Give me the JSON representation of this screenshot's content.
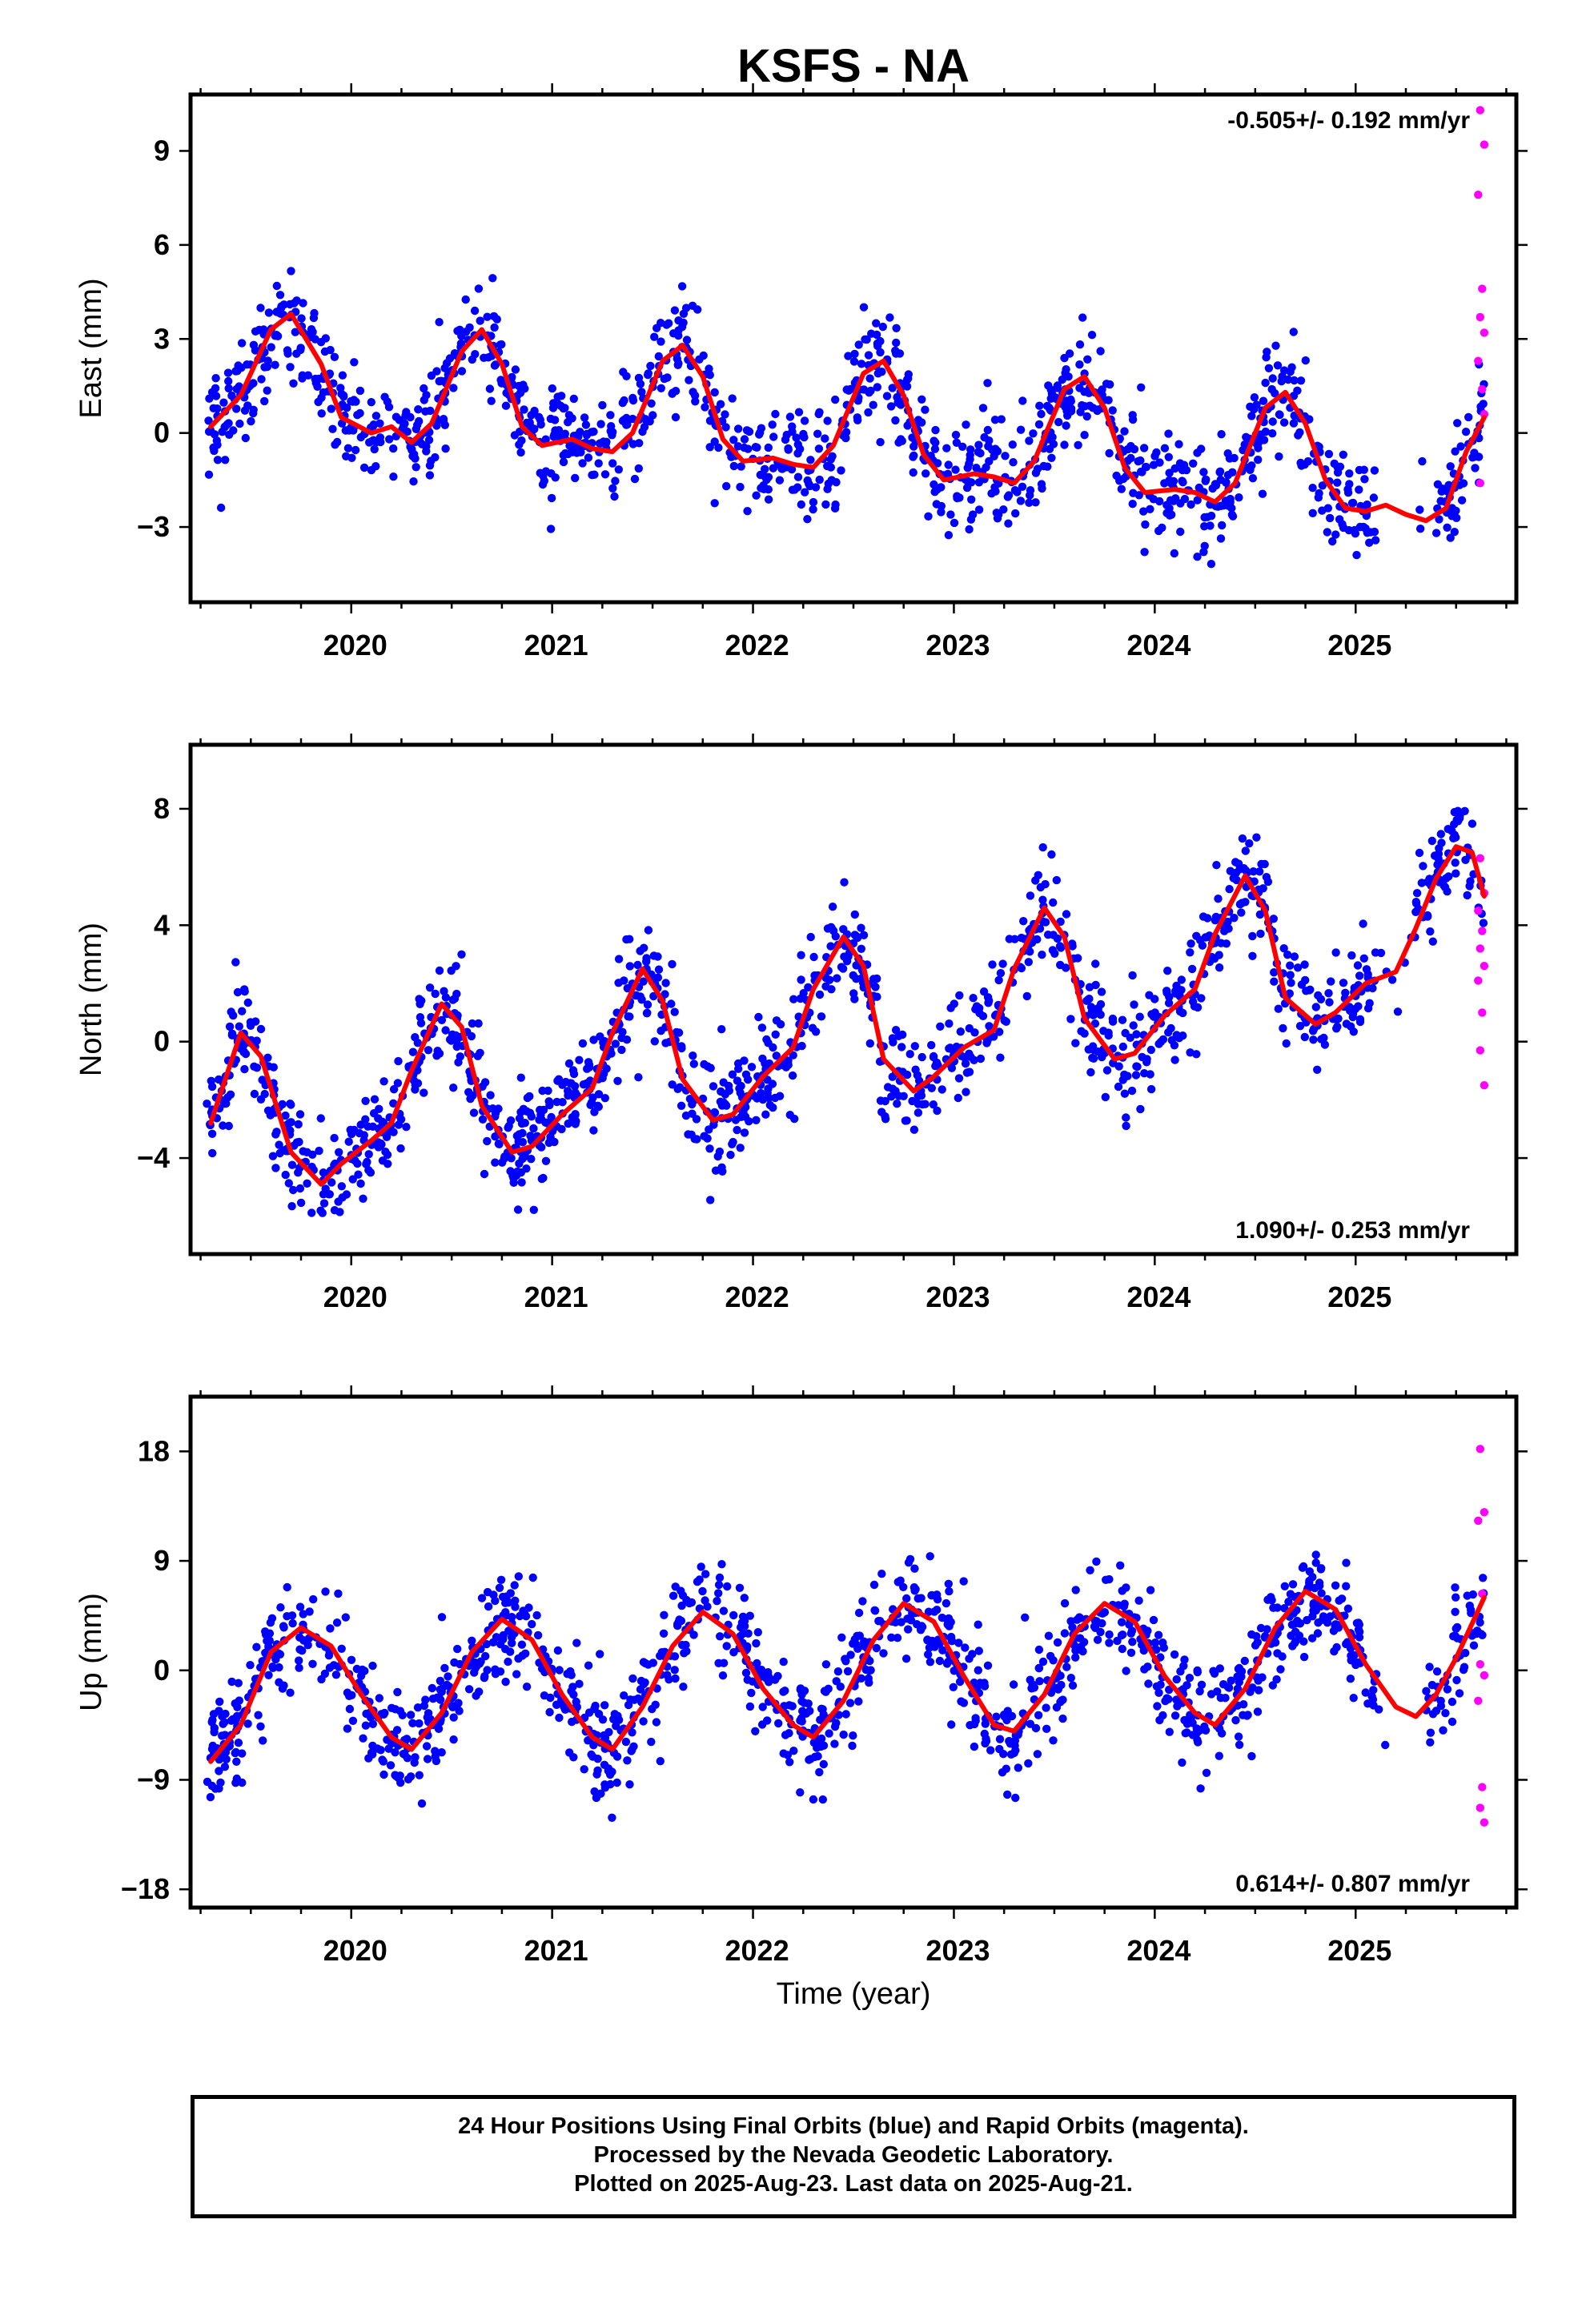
{
  "chart_data": {
    "title": "KSFS - NA",
    "footer": [
      "24 Hour Positions Using Final Orbits (blue) and Rapid Orbits (magenta).",
      "Processed by the Nevada Geodetic Laboratory.",
      "Plotted on 2025-Aug-23. Last data on 2025-Aug-21."
    ],
    "xlabel": "Time (year)",
    "x_range": [
      2019.2,
      2025.8
    ],
    "x_ticks": [
      "2020",
      "2021",
      "2022",
      "2023",
      "2024",
      "2025"
    ],
    "colors": {
      "final": "#0000ff",
      "rapid": "#ff00ff",
      "model": "#ff0000"
    },
    "panels": [
      {
        "type": "scatter",
        "ylabel": "East (mm)",
        "ylim": [
          -5.4,
          10.8
        ],
        "y_ticks": [
          9,
          6,
          3,
          0,
          -3
        ],
        "rate": "-0.505+/- 0.192 mm/yr",
        "rate_position": "top-right",
        "data_start": 2019.28,
        "data_end": 2025.64,
        "gap": [
          2025.1,
          2025.4
        ],
        "model": {
          "x": [
            2019.3,
            2019.45,
            2019.6,
            2019.7,
            2019.85,
            2019.95,
            2020.1,
            2020.2,
            2020.3,
            2020.4,
            2020.55,
            2020.65,
            2020.75,
            2020.85,
            2020.95,
            2021.1,
            2021.2,
            2021.3,
            2021.4,
            2021.55,
            2021.65,
            2021.75,
            2021.85,
            2021.95,
            2022.1,
            2022.2,
            2022.3,
            2022.4,
            2022.55,
            2022.65,
            2022.75,
            2022.85,
            2022.95,
            2023.1,
            2023.2,
            2023.3,
            2023.4,
            2023.55,
            2023.65,
            2023.75,
            2023.85,
            2023.95,
            2024.1,
            2024.2,
            2024.3,
            2024.4,
            2024.55,
            2024.65,
            2024.75,
            2024.85,
            2024.95,
            2025.05,
            2025.15,
            2025.25,
            2025.35,
            2025.45,
            2025.55,
            2025.64
          ],
          "y": [
            0.2,
            1.2,
            3.3,
            3.8,
            2.2,
            0.5,
            0.0,
            0.2,
            -0.3,
            0.3,
            2.6,
            3.3,
            2.2,
            0.2,
            -0.4,
            -0.2,
            -0.5,
            -0.6,
            0.0,
            2.3,
            2.8,
            1.8,
            -0.2,
            -0.9,
            -0.8,
            -1.0,
            -1.1,
            -0.4,
            1.9,
            2.3,
            1.2,
            -0.7,
            -1.5,
            -1.3,
            -1.4,
            -1.6,
            -0.9,
            1.4,
            1.8,
            0.8,
            -1.1,
            -1.9,
            -1.8,
            -1.9,
            -2.2,
            -1.6,
            0.8,
            1.3,
            0.3,
            -1.5,
            -2.4,
            -2.5,
            -2.3,
            -2.6,
            -2.8,
            -2.4,
            -0.6,
            0.5
          ]
        },
        "rapid_points": [
          {
            "x": 2025.62,
            "y": 10.3
          },
          {
            "x": 2025.64,
            "y": 9.2
          },
          {
            "x": 2025.61,
            "y": 7.6
          },
          {
            "x": 2025.63,
            "y": 4.6
          },
          {
            "x": 2025.62,
            "y": 3.7
          },
          {
            "x": 2025.64,
            "y": 3.2
          },
          {
            "x": 2025.61,
            "y": 2.3
          },
          {
            "x": 2025.63,
            "y": 1.4
          },
          {
            "x": 2025.64,
            "y": 0.6
          },
          {
            "x": 2025.62,
            "y": -1.6
          }
        ]
      },
      {
        "type": "scatter",
        "ylabel": "North (mm)",
        "ylim": [
          -7.3,
          10.2
        ],
        "y_ticks": [
          8,
          4,
          0,
          -4
        ],
        "rate": "1.090+/- 0.253 mm/yr",
        "rate_position": "bottom-right",
        "data_start": 2019.28,
        "data_end": 2025.64,
        "gap": [
          2025.1,
          2025.3
        ],
        "model": {
          "x": [
            2019.3,
            2019.45,
            2019.55,
            2019.7,
            2019.85,
            2019.95,
            2020.1,
            2020.2,
            2020.3,
            2020.45,
            2020.55,
            2020.65,
            2020.8,
            2020.9,
            2021.05,
            2021.2,
            2021.3,
            2021.45,
            2021.55,
            2021.65,
            2021.8,
            2021.9,
            2022.05,
            2022.2,
            2022.3,
            2022.45,
            2022.55,
            2022.65,
            2022.8,
            2022.9,
            2023.05,
            2023.2,
            2023.3,
            2023.45,
            2023.55,
            2023.65,
            2023.8,
            2023.9,
            2024.05,
            2024.2,
            2024.3,
            2024.45,
            2024.55,
            2024.65,
            2024.8,
            2024.9,
            2025.05,
            2025.2,
            2025.3,
            2025.4,
            2025.5,
            2025.58,
            2025.64
          ],
          "y": [
            -2.8,
            0.3,
            -0.5,
            -3.8,
            -4.9,
            -4.2,
            -3.4,
            -2.8,
            -1.0,
            1.3,
            0.5,
            -2.2,
            -3.8,
            -3.6,
            -2.5,
            -1.6,
            0.3,
            2.5,
            1.4,
            -1.3,
            -2.7,
            -2.5,
            -1.2,
            -0.2,
            1.8,
            3.6,
            2.6,
            -0.6,
            -1.7,
            -1.2,
            -0.2,
            0.4,
            2.5,
            4.6,
            3.6,
            0.8,
            -0.6,
            -0.4,
            0.9,
            1.8,
            3.7,
            5.7,
            4.5,
            1.5,
            0.6,
            1.0,
            2.0,
            2.4,
            3.9,
            5.6,
            6.7,
            6.5,
            5.0
          ]
        },
        "rapid_points": [
          {
            "x": 2025.62,
            "y": 6.3
          },
          {
            "x": 2025.64,
            "y": 5.1
          },
          {
            "x": 2025.61,
            "y": 4.5
          },
          {
            "x": 2025.63,
            "y": 3.8
          },
          {
            "x": 2025.62,
            "y": 3.2
          },
          {
            "x": 2025.64,
            "y": 2.6
          },
          {
            "x": 2025.61,
            "y": 2.1
          },
          {
            "x": 2025.63,
            "y": 1.0
          },
          {
            "x": 2025.62,
            "y": -0.3
          },
          {
            "x": 2025.64,
            "y": -1.5
          }
        ]
      },
      {
        "type": "scatter",
        "ylabel": "Up (mm)",
        "ylim": [
          -19.5,
          22.5
        ],
        "y_ticks": [
          18,
          9,
          0,
          -9,
          -18
        ],
        "rate": "0.614+/- 0.807 mm/yr",
        "rate_position": "bottom-right",
        "data_start": 2019.28,
        "data_end": 2025.64,
        "gap": [
          2025.1,
          2025.35
        ],
        "model": {
          "x": [
            2019.3,
            2019.45,
            2019.6,
            2019.75,
            2019.9,
            2020.05,
            2020.2,
            2020.3,
            2020.45,
            2020.6,
            2020.75,
            2020.9,
            2021.05,
            2021.2,
            2021.3,
            2021.45,
            2021.6,
            2021.75,
            2021.9,
            2022.05,
            2022.2,
            2022.3,
            2022.45,
            2022.6,
            2022.75,
            2022.9,
            2023.05,
            2023.2,
            2023.3,
            2023.45,
            2023.6,
            2023.75,
            2023.9,
            2024.05,
            2024.2,
            2024.3,
            2024.45,
            2024.6,
            2024.75,
            2024.9,
            2025.05,
            2025.2,
            2025.3,
            2025.4,
            2025.5,
            2025.64
          ],
          "y": [
            -7.5,
            -4.5,
            1.5,
            3.5,
            2.0,
            -2.0,
            -5.5,
            -6.5,
            -3.5,
            1.5,
            4.2,
            2.5,
            -2.0,
            -5.5,
            -6.5,
            -3.0,
            2.0,
            4.8,
            3.0,
            -1.5,
            -4.5,
            -5.5,
            -2.5,
            2.5,
            5.5,
            4.0,
            -0.5,
            -4.5,
            -5.0,
            -2.0,
            3.0,
            5.5,
            4.0,
            -0.5,
            -3.5,
            -4.5,
            -1.5,
            3.5,
            6.5,
            5.0,
            0.5,
            -3.0,
            -3.8,
            -2.0,
            1.0,
            6.0
          ]
        },
        "rapid_points": [
          {
            "x": 2025.62,
            "y": 18.2
          },
          {
            "x": 2025.64,
            "y": 13.0
          },
          {
            "x": 2025.61,
            "y": 12.3
          },
          {
            "x": 2025.63,
            "y": 6.3
          },
          {
            "x": 2025.62,
            "y": 0.5
          },
          {
            "x": 2025.64,
            "y": -0.4
          },
          {
            "x": 2025.61,
            "y": -2.5
          },
          {
            "x": 2025.63,
            "y": -9.6
          },
          {
            "x": 2025.62,
            "y": -11.3
          },
          {
            "x": 2025.64,
            "y": -12.5
          }
        ]
      }
    ]
  }
}
